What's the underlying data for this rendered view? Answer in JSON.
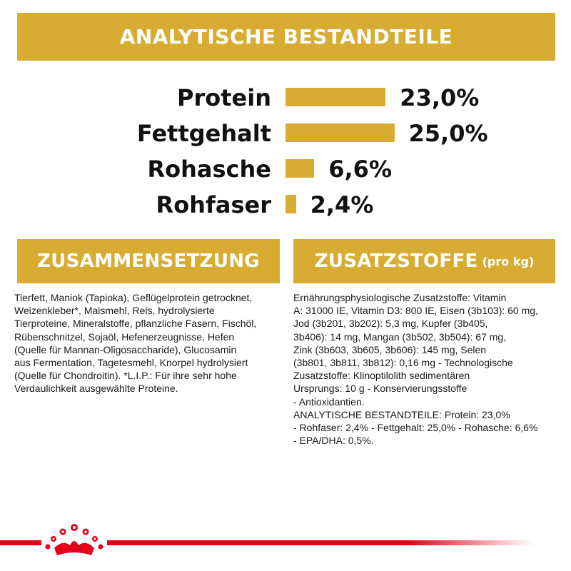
{
  "header": {
    "title": "ANALYTISCHE BESTANDTEILE"
  },
  "nutrients": [
    {
      "label": "Protein",
      "value": "23,0%",
      "percent": 23.0
    },
    {
      "label": "Fettgehalt",
      "value": "25,0%",
      "percent": 25.0
    },
    {
      "label": "Rohasche",
      "value": "6,6%",
      "percent": 6.6
    },
    {
      "label": "Rohfaser",
      "value": "2,4%",
      "percent": 2.4
    }
  ],
  "composition": {
    "title": "ZUSAMMENSETZUNG",
    "text": "Tierfett, Maniok (Tapioka), Geflügelprotein getrocknet,\nWeizenkleber*, Maismehl, Reis, hydrolysierte\nTierproteine, Mineralstoffe, pflanzliche Fasern, Fischöl,\nRübenschnitzel, Sojaöl, Hefenerzeugnisse, Hefen\n(Quelle für Mannan-Oligosaccharide), Glucosamin\naus Fermentation, Tagetesmehl, Knorpel hydrolysiert\n(Quelle für Chondroitin). *L.I.P.: Für ihre sehr hohe\nVerdaulichkeit ausgewählte Proteine."
  },
  "additives": {
    "title": "ZUSATZSTOFFE",
    "title_suffix": "(pro kg)",
    "text": "Ernährungsphysiologische Zusatzstoffe: Vitamin\nA: 31000 IE, Vitamin D3: 800 IE, Eisen (3b103): 60 mg,\nJod (3b201, 3b202): 5,3 mg, Kupfer (3b405,\n3b406): 14 mg, Mangan (3b502, 3b504): 67 mg,\nZink (3b603, 3b605, 3b606): 145 mg, Selen\n(3b801, 3b811, 3b812): 0,16 mg - Technologische\nZusatzstoffe: Klinoptilolith sedimentären\nUrsprungs: 10 g - Konservierungsstoffe\n- Antioxidantien.\nANALYTISCHE BESTANDTEILE: Protein: 23,0%\n- Rohfaser: 2,4% - Fettgehalt: 25,0% - Rohasche: 6,6%\n- EPA/DHA: 0,5%."
  },
  "footer": {
    "logo_icon": "crown-icon"
  },
  "colors": {
    "gold": "#d8ac33",
    "red": "#e2001a",
    "text": "#1a1a1a"
  }
}
